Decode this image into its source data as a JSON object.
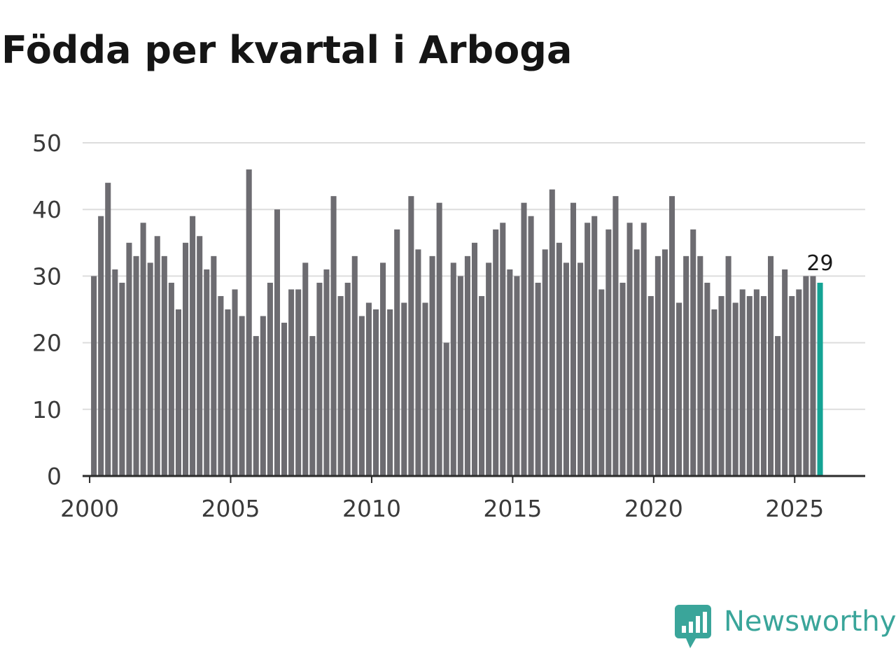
{
  "title": "Födda per kvartal i Arboga",
  "brand": {
    "name": "Newsworthy",
    "color": "#3aa59a"
  },
  "colors": {
    "bar": "#6d6c71",
    "highlight": "#14a394",
    "grid": "#dddddd",
    "axis": "#2b2b2b",
    "tick_text": "#3a3a3a"
  },
  "chart_data": {
    "type": "bar",
    "title": "Födda per kvartal i Arboga",
    "xlabel": "",
    "ylabel": "",
    "x_start": 2000,
    "interval": "quarter",
    "x_ticks": [
      2000,
      2005,
      2010,
      2015,
      2020,
      2025
    ],
    "xlim": [
      1999.75,
      2027.5
    ],
    "ylim": [
      0,
      50
    ],
    "y_ticks": [
      0,
      10,
      20,
      30,
      40,
      50
    ],
    "grid": true,
    "values": [
      30,
      39,
      44,
      31,
      29,
      35,
      33,
      38,
      32,
      36,
      33,
      29,
      25,
      35,
      39,
      36,
      31,
      33,
      27,
      25,
      28,
      24,
      46,
      21,
      24,
      29,
      40,
      23,
      28,
      28,
      32,
      21,
      29,
      31,
      42,
      27,
      29,
      33,
      24,
      26,
      25,
      32,
      25,
      37,
      26,
      42,
      34,
      26,
      33,
      41,
      20,
      32,
      30,
      33,
      35,
      27,
      32,
      37,
      38,
      31,
      30,
      41,
      39,
      29,
      34,
      43,
      35,
      32,
      41,
      32,
      38,
      39,
      28,
      37,
      42,
      29,
      38,
      34,
      38,
      27,
      33,
      34,
      42,
      26,
      33,
      37,
      33,
      29,
      25,
      27,
      33,
      26,
      28,
      27,
      28,
      27,
      33,
      21,
      31,
      27,
      28,
      30,
      30,
      29
    ],
    "highlight_last": true,
    "last_label": "29"
  }
}
